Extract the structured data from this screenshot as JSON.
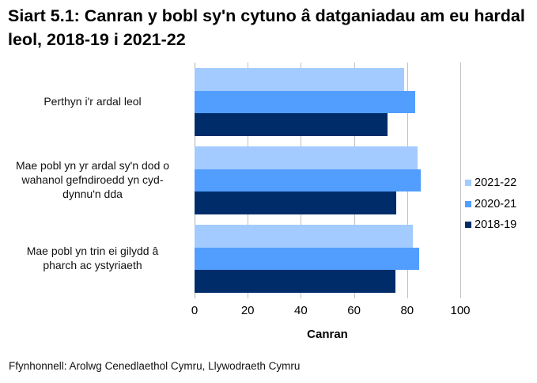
{
  "title": "Siart 5.1: Canran y bobl sy'n cytuno â datganiadau am eu hardal leol, 2018-19 i 2021-22",
  "source": "Ffynhonnell: Arolwg Cenedlaethol Cymru, Llywodraeth Cymru",
  "colors": {
    "2021-22": "#A3CBFF",
    "2020-21": "#529EFF",
    "2018-19": "#002D6A",
    "grid": "#C0C0C0"
  },
  "chart_data": {
    "type": "bar",
    "orientation": "horizontal",
    "title": "Siart 5.1: Canran y bobl sy'n cytuno â datganiadau am eu hardal leol, 2018-19 i 2021-22",
    "xlabel": "Canran",
    "ylabel": "",
    "xlim": [
      0,
      100
    ],
    "xticks": [
      0,
      20,
      40,
      60,
      80,
      100
    ],
    "grid": true,
    "legend_position": "right",
    "categories": [
      "Perthyn i'r ardal leol",
      "Mae pobl yn yr ardal sy'n dod o wahanol gefndiroedd yn cyd-dynnu'n dda",
      "Mae pobl yn trin ei gilydd â pharch ac ystyriaeth"
    ],
    "series": [
      {
        "name": "2021-22",
        "color": "#A3CBFF",
        "values": [
          79,
          84,
          82
        ]
      },
      {
        "name": "2020-21",
        "color": "#529EFF",
        "values": [
          83,
          85,
          84.5
        ]
      },
      {
        "name": "2018-19",
        "color": "#002D6A",
        "values": [
          72.5,
          76,
          75.5
        ]
      }
    ]
  },
  "axis": {
    "x_ticks": [
      "0",
      "20",
      "40",
      "60",
      "80",
      "100"
    ],
    "x_label": "Canran"
  },
  "category_labels": [
    [
      "Perthyn i'r ardal leol"
    ],
    [
      "Mae pobl yn yr ardal sy'n dod o",
      "wahanol gefndiroedd yn cyd-",
      "dynnu'n dda"
    ],
    [
      "Mae pobl yn trin ei gilydd â",
      "pharch ac ystyriaeth"
    ]
  ],
  "legend": [
    {
      "label": "2021-22",
      "color": "#A3CBFF"
    },
    {
      "label": "2020-21",
      "color": "#529EFF"
    },
    {
      "label": "2018-19",
      "color": "#002D6A"
    }
  ]
}
